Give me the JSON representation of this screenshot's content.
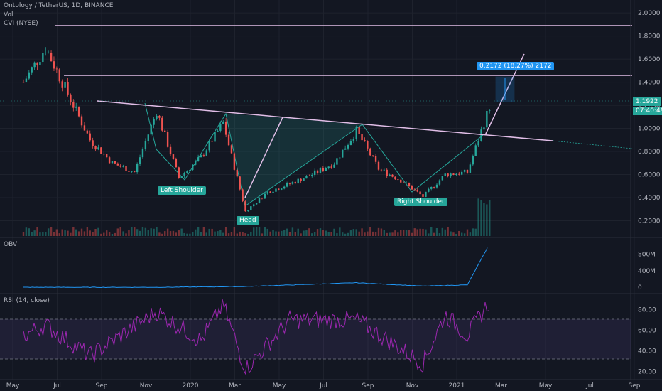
{
  "symbol": {
    "title": "Ontology / TetherUS, 1D, BINANCE",
    "vol_label": "Vol",
    "indicator_label": "CVI (NYSE)"
  },
  "price_badges": {
    "current": "1.1922",
    "countdown": "07:40:49",
    "measure": "0.2172 (18.27%) 2172"
  },
  "pattern_labels": {
    "left_shoulder": "Left Shoulder",
    "head": "Head",
    "right_shoulder": "Right Shoulder"
  },
  "obv": {
    "label": "OBV",
    "ticks": [
      "800M",
      "400M",
      "0"
    ]
  },
  "rsi": {
    "label": "RSI (14, close)",
    "ticks": [
      "80.00",
      "60.00",
      "40.00",
      "20.00"
    ]
  },
  "time_axis": [
    "May",
    "Jul",
    "Sep",
    "Nov",
    "2020",
    "Mar",
    "May",
    "Jul",
    "Sep",
    "Nov",
    "2021",
    "Mar",
    "May",
    "Jul",
    "Sep"
  ],
  "colors": {
    "background": "#131722",
    "up": "#26a69a",
    "down": "#ef5350",
    "pattern": "#26a69a",
    "lines": "#e1bee7",
    "rsi": "#9c27b0",
    "obv": "#2196f3",
    "measure": "#2196f3"
  },
  "chart_data": [
    {
      "type": "candlestick",
      "ylim": [
        0.08,
        2.05
      ],
      "y_ticks": [
        "2.0000",
        "1.8000",
        "1.6000",
        "1.4000",
        "1.2000",
        "1.0000",
        "0.8000",
        "0.6000",
        "0.4000",
        "0.2000"
      ],
      "approx_close_path": [
        {
          "date": "2019-05",
          "value": 1.4
        },
        {
          "date": "2019-06",
          "value": 1.7
        },
        {
          "date": "2019-07",
          "value": 1.3
        },
        {
          "date": "2019-08",
          "value": 0.9
        },
        {
          "date": "2019-09",
          "value": 0.7
        },
        {
          "date": "2019-10",
          "value": 0.62
        },
        {
          "date": "2019-11",
          "value": 1.15
        },
        {
          "date": "2019-12",
          "value": 0.57
        },
        {
          "date": "2020-01",
          "value": 0.75
        },
        {
          "date": "2020-02",
          "value": 1.05
        },
        {
          "date": "2020-03",
          "value": 0.28
        },
        {
          "date": "2020-04",
          "value": 0.45
        },
        {
          "date": "2020-05",
          "value": 0.52
        },
        {
          "date": "2020-06",
          "value": 0.6
        },
        {
          "date": "2020-07",
          "value": 0.7
        },
        {
          "date": "2020-08",
          "value": 0.98
        },
        {
          "date": "2020-09",
          "value": 0.65
        },
        {
          "date": "2020-10",
          "value": 0.55
        },
        {
          "date": "2020-11",
          "value": 0.41
        },
        {
          "date": "2020-12",
          "value": 0.6
        },
        {
          "date": "2021-01",
          "value": 0.62
        },
        {
          "date": "2021-02",
          "value": 1.19
        }
      ],
      "horizontal_levels": [
        1.83,
        1.41
      ],
      "current_price": 1.1922
    },
    {
      "type": "line",
      "name": "OBV",
      "ylim": [
        -100,
        1100
      ],
      "approx_path": [
        {
          "date": "2019-05",
          "value": 0
        },
        {
          "date": "2019-11",
          "value": 0
        },
        {
          "date": "2020-03",
          "value": 20
        },
        {
          "date": "2020-08",
          "value": 110
        },
        {
          "date": "2020-11",
          "value": 30
        },
        {
          "date": "2021-01",
          "value": 60
        },
        {
          "date": "2021-02",
          "value": 1050
        }
      ]
    },
    {
      "type": "line",
      "name": "RSI (14, close)",
      "ylim": [
        15,
        92
      ],
      "bands": [
        70,
        30
      ],
      "approx_path": [
        {
          "date": "2019-05",
          "value": 55
        },
        {
          "date": "2019-06",
          "value": 65
        },
        {
          "date": "2019-08",
          "value": 35
        },
        {
          "date": "2019-11",
          "value": 78
        },
        {
          "date": "2020-01",
          "value": 50
        },
        {
          "date": "2020-02",
          "value": 85
        },
        {
          "date": "2020-03",
          "value": 22
        },
        {
          "date": "2020-05",
          "value": 70
        },
        {
          "date": "2020-08",
          "value": 70
        },
        {
          "date": "2020-11",
          "value": 28
        },
        {
          "date": "2020-12",
          "value": 75
        },
        {
          "date": "2021-01",
          "value": 55
        },
        {
          "date": "2021-02",
          "value": 88
        }
      ]
    }
  ]
}
